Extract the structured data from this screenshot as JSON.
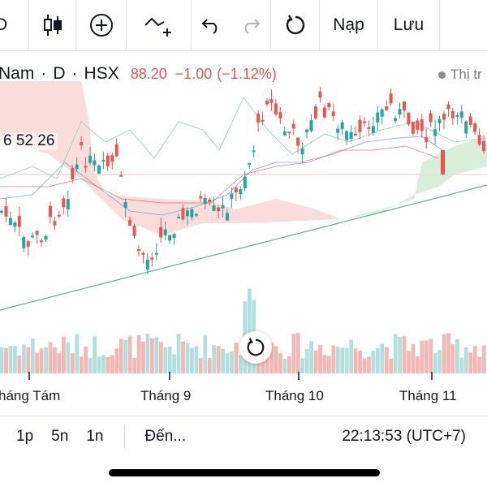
{
  "toolbar": {
    "partial_left": "D",
    "indicators_icon": "candlestick-icon",
    "add_icon": "plus-circle-icon",
    "draw_icon": "trend-line-add-icon",
    "undo_icon": "undo-icon",
    "redo_icon": "redo-icon",
    "reload_icon": "reload-icon",
    "load_label": "Nạp",
    "save_label": "Lưu"
  },
  "symbol": {
    "name": "Nam",
    "interval": "D",
    "exchange": "HSX",
    "last_price": "88.20",
    "change": "−1.00",
    "change_pct": "(−1.12%)",
    "indicator_label": "Thị tr",
    "ichimoku_values": "6 52 26"
  },
  "x_axis": {
    "labels": [
      "háng Tám",
      "Tháng 9",
      "Tháng 10",
      "Tháng 11"
    ]
  },
  "bottom_bar": {
    "ranges": [
      "1p",
      "5n",
      "1n"
    ],
    "goto_label": "Đến...",
    "clock": "22:13:53 (UTC+7)"
  },
  "colors": {
    "up": "#26a69a",
    "down": "#ef5350",
    "up_volume": "#b2dfdb",
    "down_volume": "#f5b7b5",
    "trendline": "#5fb08d",
    "cloud_bull": "#d4ecd4",
    "cloud_bear": "#f9d3d3"
  }
}
